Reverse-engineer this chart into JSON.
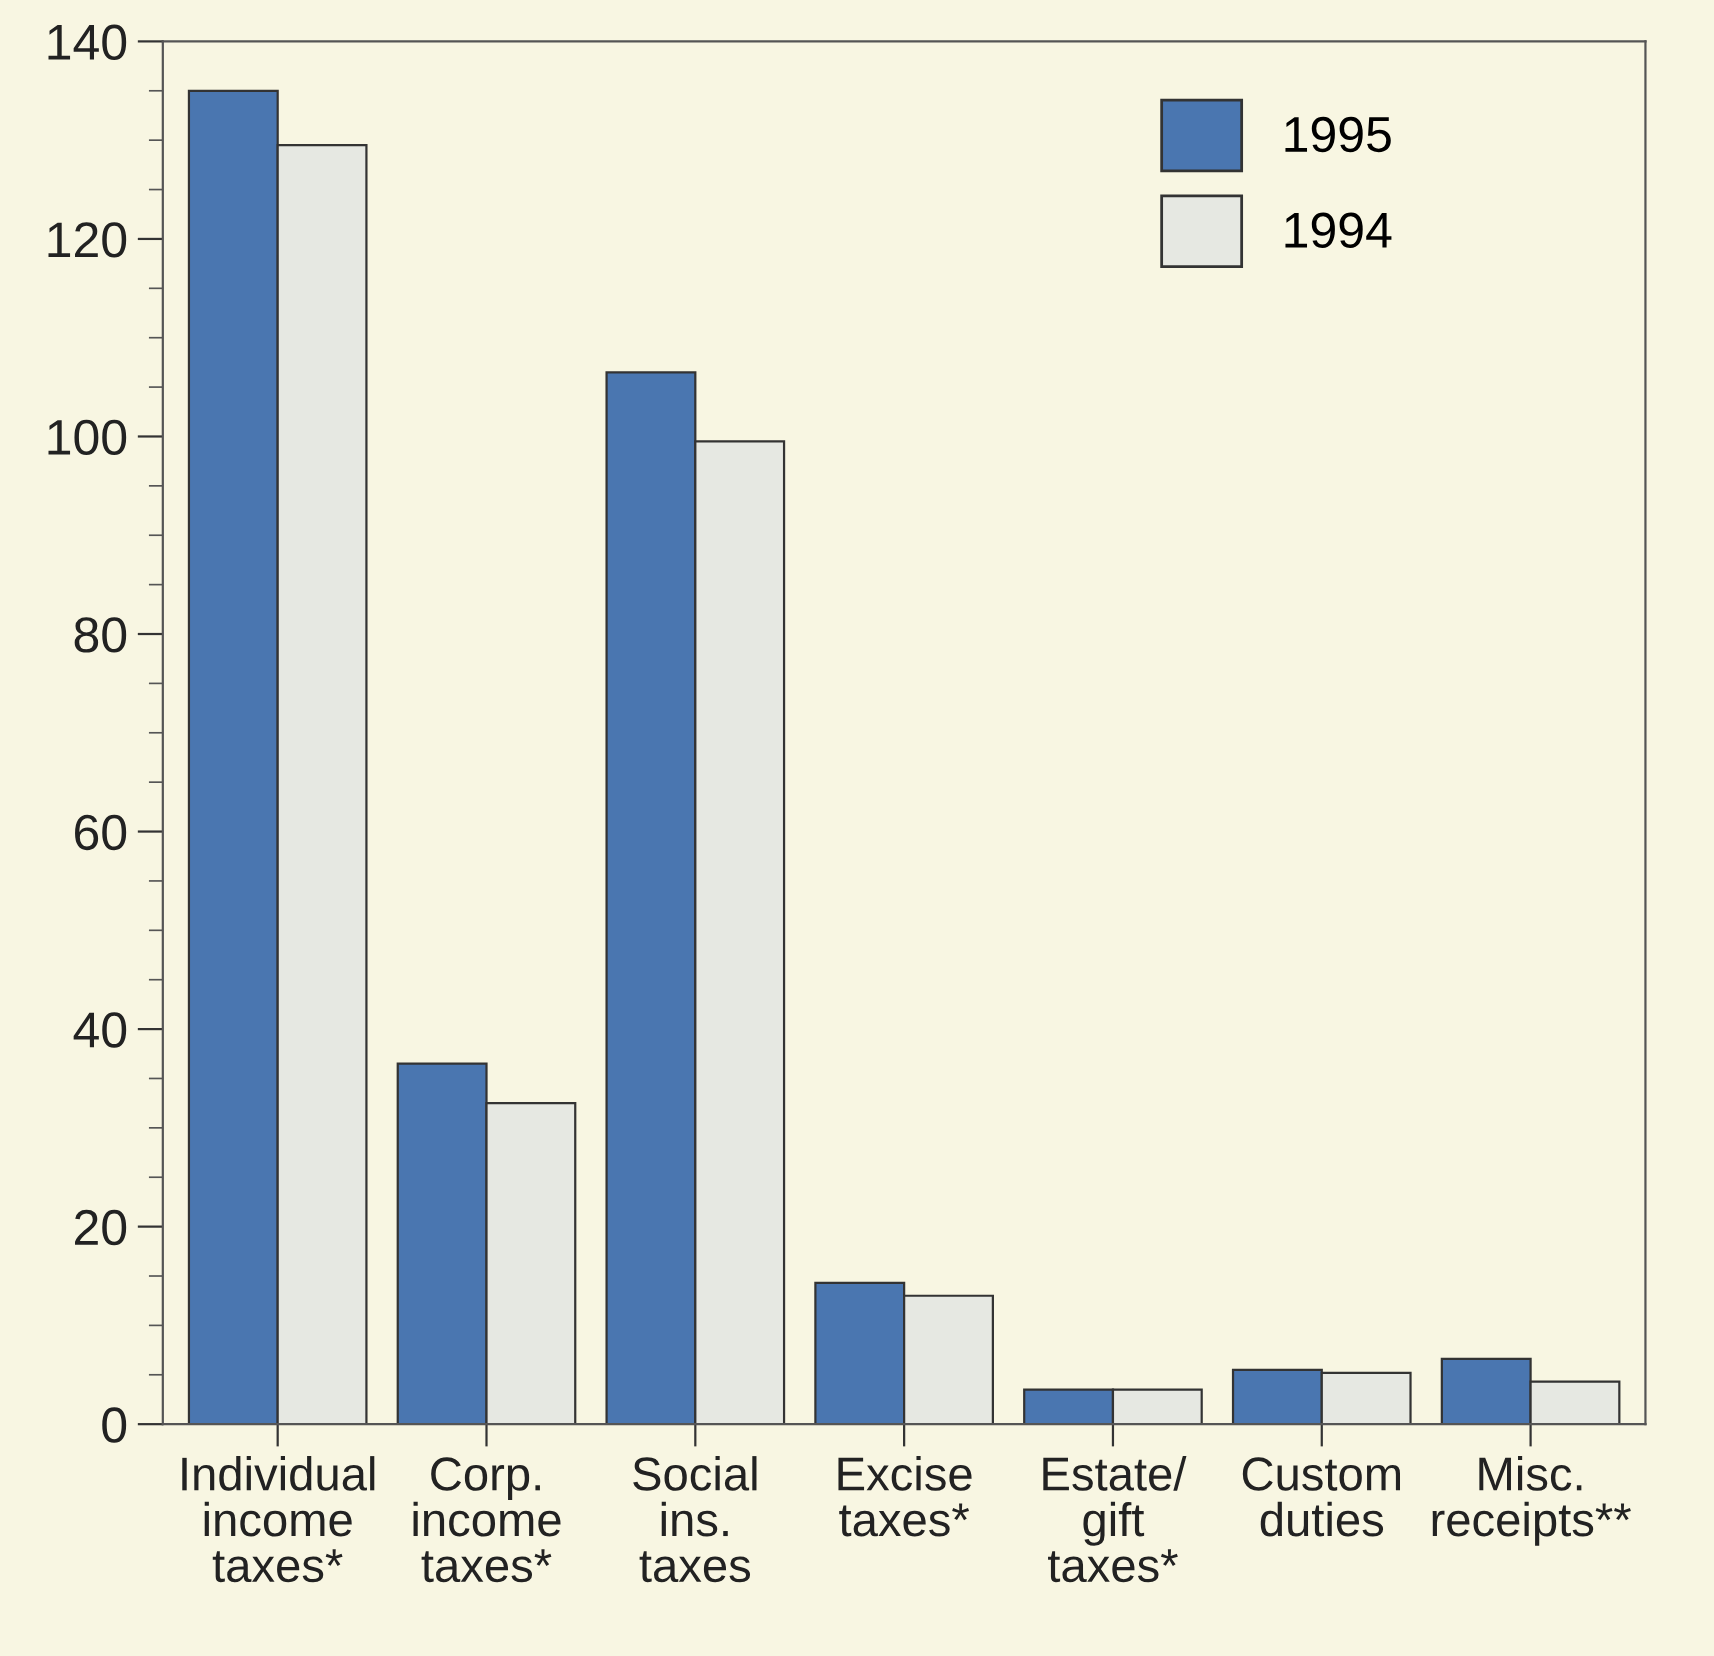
{
  "chart_data": {
    "type": "bar",
    "categories": [
      "Individual\nincome\ntaxes*",
      "Corp.\nincome\ntaxes*",
      "Social\nins.\ntaxes",
      "Excise\ntaxes*",
      "Estate/\ngift\ntaxes*",
      "Custom\nduties",
      "Misc.\nreceipts**"
    ],
    "series": [
      {
        "name": "1995",
        "color": "#4a76b0",
        "values": [
          135,
          36.5,
          106.5,
          14.3,
          3.5,
          5.5,
          6.6
        ]
      },
      {
        "name": "1994",
        "color": "#e6e8e2",
        "values": [
          129.5,
          32.5,
          99.5,
          13.0,
          3.5,
          5.2,
          4.3
        ]
      }
    ],
    "ylim": [
      0,
      140
    ],
    "yticks": [
      0,
      {
        "value": 5,
        "label": null
      },
      {
        "value": 10,
        "label": null
      },
      {
        "value": 15,
        "label": null
      },
      20,
      {
        "value": 25,
        "label": null
      },
      {
        "value": 30,
        "label": null
      },
      {
        "value": 35,
        "label": null
      },
      40,
      {
        "value": 45,
        "label": null
      },
      {
        "value": 50,
        "label": null
      },
      {
        "value": 55,
        "label": null
      },
      60,
      {
        "value": 65,
        "label": null
      },
      {
        "value": 70,
        "label": null
      },
      {
        "value": 75,
        "label": null
      },
      80,
      {
        "value": 85,
        "label": null
      },
      {
        "value": 90,
        "label": null
      },
      {
        "value": 95,
        "label": null
      },
      100,
      {
        "value": 105,
        "label": null
      },
      {
        "value": 110,
        "label": null
      },
      {
        "value": 115,
        "label": null
      },
      120,
      {
        "value": 125,
        "label": null
      },
      {
        "value": 130,
        "label": null
      },
      {
        "value": 135,
        "label": null
      },
      140
    ],
    "grid": false,
    "legend": "top right"
  }
}
